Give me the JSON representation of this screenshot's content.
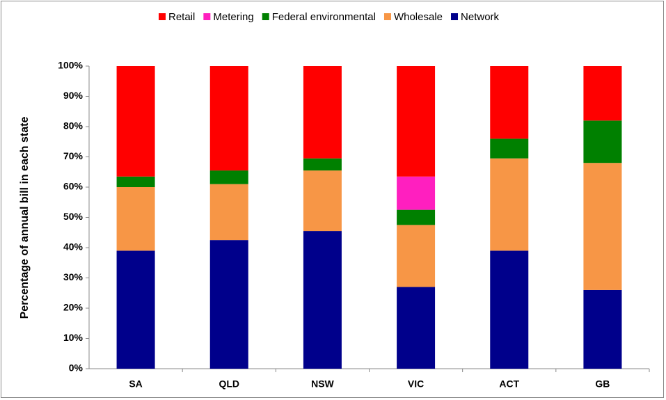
{
  "chart_data": {
    "type": "stacked_bar",
    "y_axis_label": "Percentage of annual bill in each state",
    "categories": [
      "SA",
      "QLD",
      "NSW",
      "VIC",
      "ACT",
      "GB"
    ],
    "series": [
      {
        "name": "Retail",
        "color": "#ff0000",
        "values": [
          36.5,
          34.5,
          30.5,
          36.5,
          24,
          18
        ]
      },
      {
        "name": "Metering",
        "color": "#ff1fbf",
        "values": [
          0,
          0,
          0,
          11,
          0,
          0
        ]
      },
      {
        "name": "Federal environmental",
        "color": "#008000",
        "values": [
          3.5,
          4.5,
          4,
          5,
          6.5,
          14
        ]
      },
      {
        "name": "Wholesale",
        "color": "#f79646",
        "values": [
          21,
          18.5,
          20,
          20.5,
          30.5,
          42
        ]
      },
      {
        "name": "Network",
        "color": "#00008b",
        "values": [
          39,
          42.5,
          45.5,
          27,
          39,
          26
        ]
      }
    ],
    "ylim": [
      0,
      100
    ],
    "yticks": [
      {
        "value": 0,
        "label": "0%"
      },
      {
        "value": 10,
        "label": "10%"
      },
      {
        "value": 20,
        "label": "20%"
      },
      {
        "value": 30,
        "label": "30%"
      },
      {
        "value": 40,
        "label": "40%"
      },
      {
        "value": 50,
        "label": "50%"
      },
      {
        "value": 60,
        "label": "60%"
      },
      {
        "value": 70,
        "label": "70%"
      },
      {
        "value": 80,
        "label": "80%"
      },
      {
        "value": 90,
        "label": "90%"
      },
      {
        "value": 100,
        "label": "100%"
      }
    ],
    "legend": "top"
  }
}
